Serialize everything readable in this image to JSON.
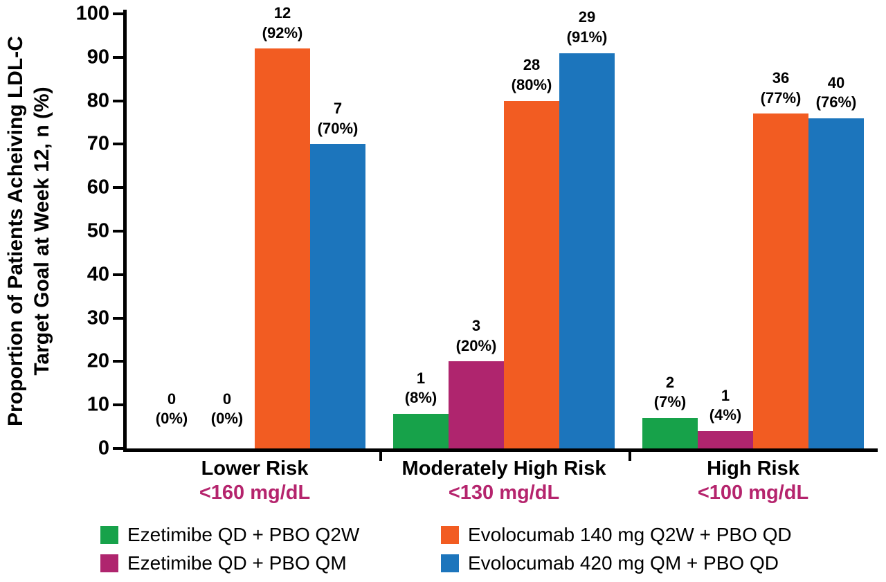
{
  "chart_data": {
    "type": "bar",
    "title": "",
    "ylabel_line1": "Proportion of Patients Acheiving LDL-C",
    "ylabel_line2": "Target Goal at Week 12, n (%)",
    "ylim": [
      0,
      100
    ],
    "yticks": [
      0,
      10,
      20,
      30,
      40,
      50,
      60,
      70,
      80,
      90,
      100
    ],
    "grid": false,
    "legend_position": "bottom",
    "axis_color": "#000000",
    "threshold_color": "#B5246D",
    "categories": [
      {
        "label": "Lower Risk",
        "threshold": "<160 mg/dL"
      },
      {
        "label": "Moderately High Risk",
        "threshold": "<130 mg/dL"
      },
      {
        "label": "High Risk",
        "threshold": "<100 mg/dL"
      }
    ],
    "series": [
      {
        "name": "Ezetimibe QD + PBO Q2W",
        "color": "#17A24A",
        "counts": [
          0,
          1,
          2
        ],
        "percents": [
          0,
          8,
          7
        ]
      },
      {
        "name": "Ezetimibe QD + PBO QM",
        "color": "#AF256E",
        "counts": [
          0,
          3,
          1
        ],
        "percents": [
          0,
          20,
          4
        ]
      },
      {
        "name": "Evolocumab 140 mg Q2W + PBO QD",
        "color": "#F25C22",
        "counts": [
          12,
          28,
          36
        ],
        "percents": [
          92,
          80,
          77
        ]
      },
      {
        "name": "Evolocumab 420 mg QM + PBO QD",
        "color": "#1C75BC",
        "counts": [
          7,
          29,
          40
        ],
        "percents": [
          70,
          91,
          76
        ]
      }
    ],
    "legend_order": [
      0,
      2,
      1,
      3
    ]
  }
}
